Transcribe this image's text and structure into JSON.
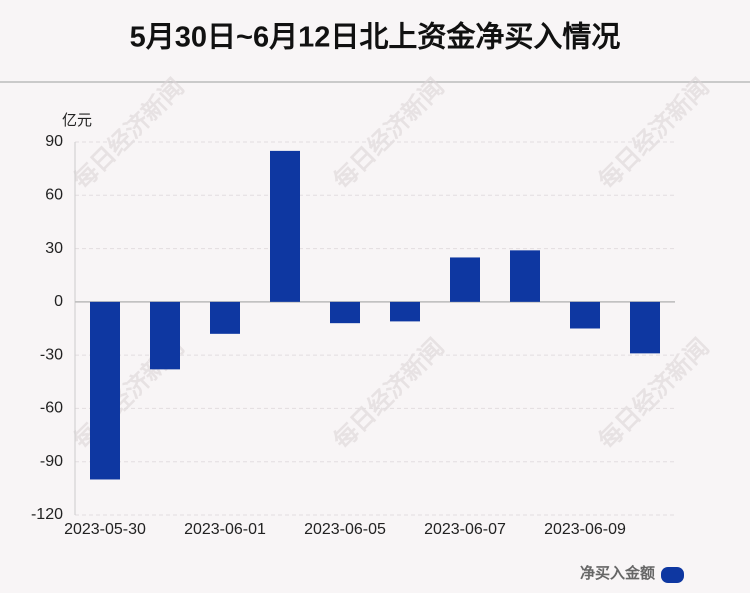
{
  "chart_data": {
    "type": "bar",
    "title": "5月30日~6月12日北上资金净买入情况",
    "y_unit": "亿元",
    "categories": [
      "2023-05-30",
      null,
      "2023-06-01",
      null,
      "2023-06-05",
      null,
      "2023-06-07",
      null,
      "2023-06-09",
      null
    ],
    "series": [
      {
        "name": "净买入金额",
        "color": "#0e37a1",
        "values": [
          -100,
          -38,
          -18,
          85,
          -12,
          -11,
          25,
          29,
          -15,
          -29
        ]
      }
    ],
    "ylim": [
      -120,
      90
    ],
    "yticks": [
      -120,
      -90,
      -60,
      -30,
      0,
      30,
      60,
      90
    ],
    "grid": true,
    "legend": "bottom-right",
    "watermark": "每日经济新闻"
  }
}
